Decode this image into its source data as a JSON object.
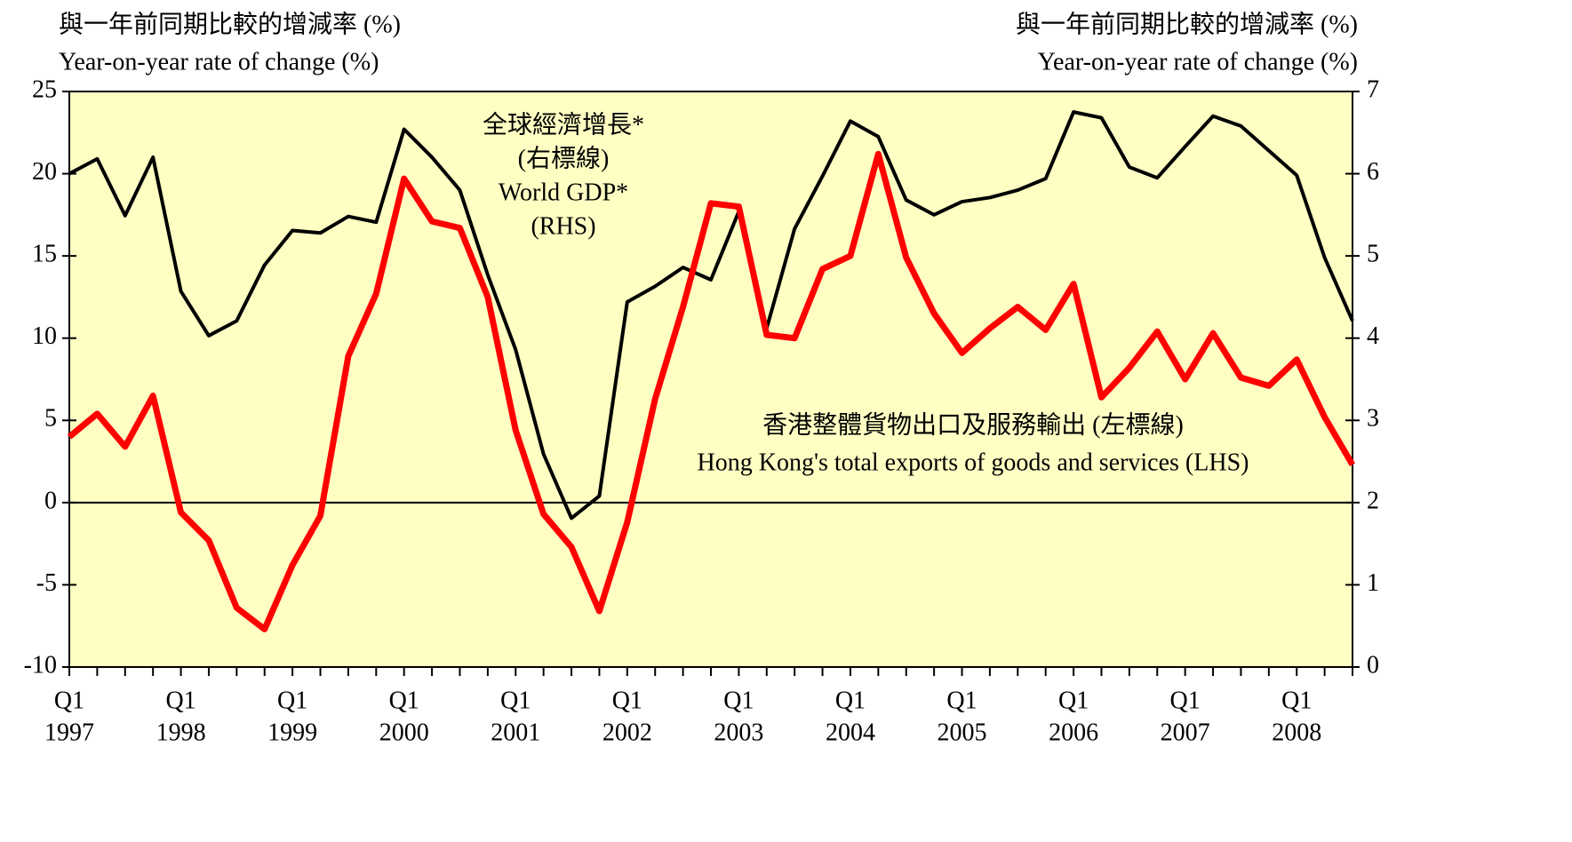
{
  "chart_data": {
    "type": "line",
    "y_title": [
      "與一年前同期比較的增減率 (%)",
      "Year-on-year rate of change (%)"
    ],
    "y2_title": [
      "與一年前同期比較的增減率 (%)",
      "Year-on-year rate of change (%)"
    ],
    "annotations": [
      [
        "全球經濟增長*",
        "(右標線)",
        "World GDP*",
        "(RHS)"
      ],
      [
        "香港整體貨物出口及服務輸出 (左標線)",
        "Hong Kong's total exports of goods and services (LHS)"
      ]
    ],
    "categories": [
      "Q1",
      null,
      null,
      null,
      "Q1",
      null,
      null,
      null,
      "Q1",
      null,
      null,
      null,
      "Q1",
      null,
      null,
      null,
      "Q1",
      null,
      null,
      null,
      "Q1",
      null,
      null,
      null,
      "Q1",
      null,
      null,
      null,
      "Q1",
      null,
      null,
      null,
      "Q1",
      null,
      null,
      null,
      "Q1",
      null,
      null,
      null,
      "Q1",
      null,
      null,
      null,
      "Q1",
      null,
      null
    ],
    "category_years": [
      "1997",
      null,
      null,
      null,
      "1998",
      null,
      null,
      null,
      "1999",
      null,
      null,
      null,
      "2000",
      null,
      null,
      null,
      "2001",
      null,
      null,
      null,
      "2002",
      null,
      null,
      null,
      "2003",
      null,
      null,
      null,
      "2004",
      null,
      null,
      null,
      "2005",
      null,
      null,
      null,
      "2006",
      null,
      null,
      null,
      "2007",
      null,
      null,
      null,
      "2008",
      null,
      null
    ],
    "ylim": [
      -10,
      25
    ],
    "yticks": [
      -10,
      -5,
      0,
      5,
      10,
      15,
      20,
      25
    ],
    "y2lim": [
      0,
      7
    ],
    "y2ticks": [
      0,
      1,
      2,
      3,
      4,
      5,
      6,
      7
    ],
    "background": "#ffffc4",
    "series": [
      {
        "color": "#ff0000",
        "axis": "y",
        "values": [
          4.0,
          5.4,
          3.4,
          6.5,
          -0.6,
          -2.3,
          -6.4,
          -7.7,
          -3.8,
          -0.8,
          8.9,
          12.7,
          19.7,
          17.1,
          16.7,
          12.5,
          4.4,
          -0.7,
          -2.7,
          -6.6,
          -1.2,
          6.3,
          11.9,
          18.2,
          18.0,
          10.2,
          10.0,
          14.2,
          15.0,
          21.2,
          14.9,
          11.5,
          9.1,
          10.6,
          11.9,
          10.5,
          13.3,
          6.4,
          8.2,
          10.4,
          7.5,
          10.3,
          7.6,
          7.1,
          8.7,
          5.2,
          2.3
        ]
      },
      {
        "color": "#000000",
        "axis": "y2",
        "values": [
          6.0,
          6.18,
          5.49,
          6.2,
          4.57,
          4.03,
          4.21,
          4.89,
          5.31,
          5.28,
          5.48,
          5.41,
          6.54,
          6.2,
          5.8,
          4.77,
          3.86,
          2.59,
          1.81,
          2.08,
          4.44,
          4.63,
          4.86,
          4.71,
          5.54,
          4.12,
          5.33,
          5.97,
          6.64,
          6.45,
          5.68,
          5.5,
          5.66,
          5.71,
          5.8,
          5.94,
          6.75,
          6.68,
          6.08,
          5.95,
          6.33,
          6.7,
          6.58,
          6.28,
          5.98,
          4.98,
          4.21
        ]
      }
    ]
  }
}
